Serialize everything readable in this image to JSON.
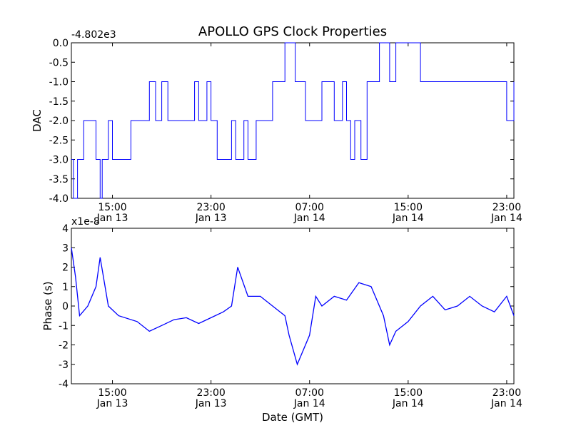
{
  "figure": {
    "title": "APOLLO GPS Clock Properties",
    "xlabel": "Date (GMT)"
  },
  "chart_data": [
    {
      "type": "line",
      "title": "APOLLO GPS Clock Properties",
      "ylabel": "DAC",
      "xlabel": "",
      "offset_label": "-4.802e3",
      "color": "#0000ff",
      "xlim": [
        "Jan 13 11:40",
        "Jan 14 23:35"
      ],
      "ylim": [
        -4.0,
        0.0
      ],
      "y_ticks": [
        "-4.0",
        "-3.5",
        "-3.0",
        "-2.5",
        "-2.0",
        "-1.5",
        "-1.0",
        "-0.5",
        "0.0"
      ],
      "x_ticks": [
        {
          "time": "15:00",
          "date": "Jan 13"
        },
        {
          "time": "23:00",
          "date": "Jan 13"
        },
        {
          "time": "07:00",
          "date": "Jan 14"
        },
        {
          "time": "15:00",
          "date": "Jan 14"
        },
        {
          "time": "23:00",
          "date": "Jan 14"
        }
      ],
      "series": [
        {
          "x": [
            "Jan 13 11:40",
            "Jan 13 11:50",
            "Jan 13 12:10",
            "Jan 13 12:40",
            "Jan 13 13:00",
            "Jan 13 13:40",
            "Jan 13 14:00",
            "Jan 13 14:10",
            "Jan 13 14:40",
            "Jan 13 15:00",
            "Jan 13 16:30",
            "Jan 13 17:30",
            "Jan 13 18:00",
            "Jan 13 18:30",
            "Jan 13 19:00",
            "Jan 13 19:30",
            "Jan 13 20:00",
            "Jan 13 21:00",
            "Jan 13 21:40",
            "Jan 13 22:00",
            "Jan 13 22:40",
            "Jan 13 23:00",
            "Jan 13 23:30",
            "Jan 14 00:00",
            "Jan 14 00:40",
            "Jan 14 01:00",
            "Jan 14 01:40",
            "Jan 14 02:00",
            "Jan 14 02:40",
            "Jan 14 03:00",
            "Jan 14 04:00",
            "Jan 14 05:00",
            "Jan 14 05:30",
            "Jan 14 05:50",
            "Jan 14 06:40",
            "Jan 14 07:00",
            "Jan 14 08:00",
            "Jan 14 08:40",
            "Jan 14 09:00",
            "Jan 14 09:40",
            "Jan 14 10:00",
            "Jan 14 10:20",
            "Jan 14 10:40",
            "Jan 14 11:10",
            "Jan 14 11:40",
            "Jan 14 12:00",
            "Jan 14 12:40",
            "Jan 14 13:30",
            "Jan 14 14:00",
            "Jan 14 16:00",
            "Jan 14 18:00",
            "Jan 14 20:00",
            "Jan 14 22:00",
            "Jan 14 23:00",
            "Jan 14 23:35"
          ],
          "y": [
            -3.0,
            -4.0,
            -3.0,
            -2.0,
            -2.0,
            -3.0,
            -4.0,
            -3.0,
            -2.0,
            -3.0,
            -2.0,
            -2.0,
            -1.0,
            -2.0,
            -1.0,
            -2.0,
            -2.0,
            -2.0,
            -1.0,
            -2.0,
            -1.0,
            -2.0,
            -3.0,
            -3.0,
            -2.0,
            -3.0,
            -2.0,
            -3.0,
            -2.0,
            -2.0,
            -1.0,
            0.0,
            0.0,
            -1.0,
            -2.0,
            -2.0,
            -1.0,
            -1.0,
            -2.0,
            -1.0,
            -2.0,
            -3.0,
            -2.0,
            -3.0,
            -1.0,
            -1.0,
            0.0,
            -1.0,
            0.0,
            -1.0,
            -1.0,
            -1.0,
            -1.0,
            -2.0,
            -1.0
          ]
        }
      ]
    },
    {
      "type": "line",
      "title": "",
      "ylabel": "Phase (s)",
      "xlabel": "Date (GMT)",
      "offset_label": "x1e-8",
      "color": "#0000ff",
      "xlim": [
        "Jan 13 11:40",
        "Jan 14 23:35"
      ],
      "ylim": [
        -4,
        4
      ],
      "y_ticks": [
        "-4",
        "-3",
        "-2",
        "-1",
        "0",
        "1",
        "2",
        "3",
        "4"
      ],
      "x_ticks": [
        {
          "time": "15:00",
          "date": "Jan 13"
        },
        {
          "time": "23:00",
          "date": "Jan 13"
        },
        {
          "time": "07:00",
          "date": "Jan 14"
        },
        {
          "time": "15:00",
          "date": "Jan 14"
        },
        {
          "time": "23:00",
          "date": "Jan 14"
        }
      ],
      "series": [
        {
          "x": [
            "Jan 13 11:40",
            "Jan 13 12:00",
            "Jan 13 12:20",
            "Jan 13 13:00",
            "Jan 13 13:40",
            "Jan 13 14:00",
            "Jan 13 14:40",
            "Jan 13 15:30",
            "Jan 13 17:00",
            "Jan 13 18:00",
            "Jan 13 19:00",
            "Jan 13 20:00",
            "Jan 13 21:00",
            "Jan 13 22:00",
            "Jan 13 23:00",
            "Jan 14 00:00",
            "Jan 14 00:40",
            "Jan 14 01:10",
            "Jan 14 02:00",
            "Jan 14 03:00",
            "Jan 14 04:00",
            "Jan 14 05:00",
            "Jan 14 05:20",
            "Jan 14 06:00",
            "Jan 14 07:00",
            "Jan 14 07:30",
            "Jan 14 08:00",
            "Jan 14 09:00",
            "Jan 14 10:00",
            "Jan 14 11:00",
            "Jan 14 12:00",
            "Jan 14 13:00",
            "Jan 14 13:30",
            "Jan 14 14:00",
            "Jan 14 15:00",
            "Jan 14 16:00",
            "Jan 14 17:00",
            "Jan 14 18:00",
            "Jan 14 19:00",
            "Jan 14 20:00",
            "Jan 14 21:00",
            "Jan 14 22:00",
            "Jan 14 23:00",
            "Jan 14 23:35"
          ],
          "y": [
            3.0,
            1.5,
            -0.5,
            0.0,
            1.0,
            2.5,
            0.0,
            -0.5,
            -0.8,
            -1.3,
            -1.0,
            -0.7,
            -0.6,
            -0.9,
            -0.6,
            -0.3,
            0.0,
            2.0,
            0.5,
            0.5,
            0.0,
            -0.5,
            -1.5,
            -3.0,
            -1.5,
            0.5,
            0.0,
            0.5,
            0.3,
            1.2,
            1.0,
            -0.5,
            -2.0,
            -1.3,
            -0.8,
            0.0,
            0.5,
            -0.2,
            0.0,
            0.5,
            0.0,
            -0.3,
            0.5,
            -0.5
          ]
        }
      ]
    }
  ]
}
